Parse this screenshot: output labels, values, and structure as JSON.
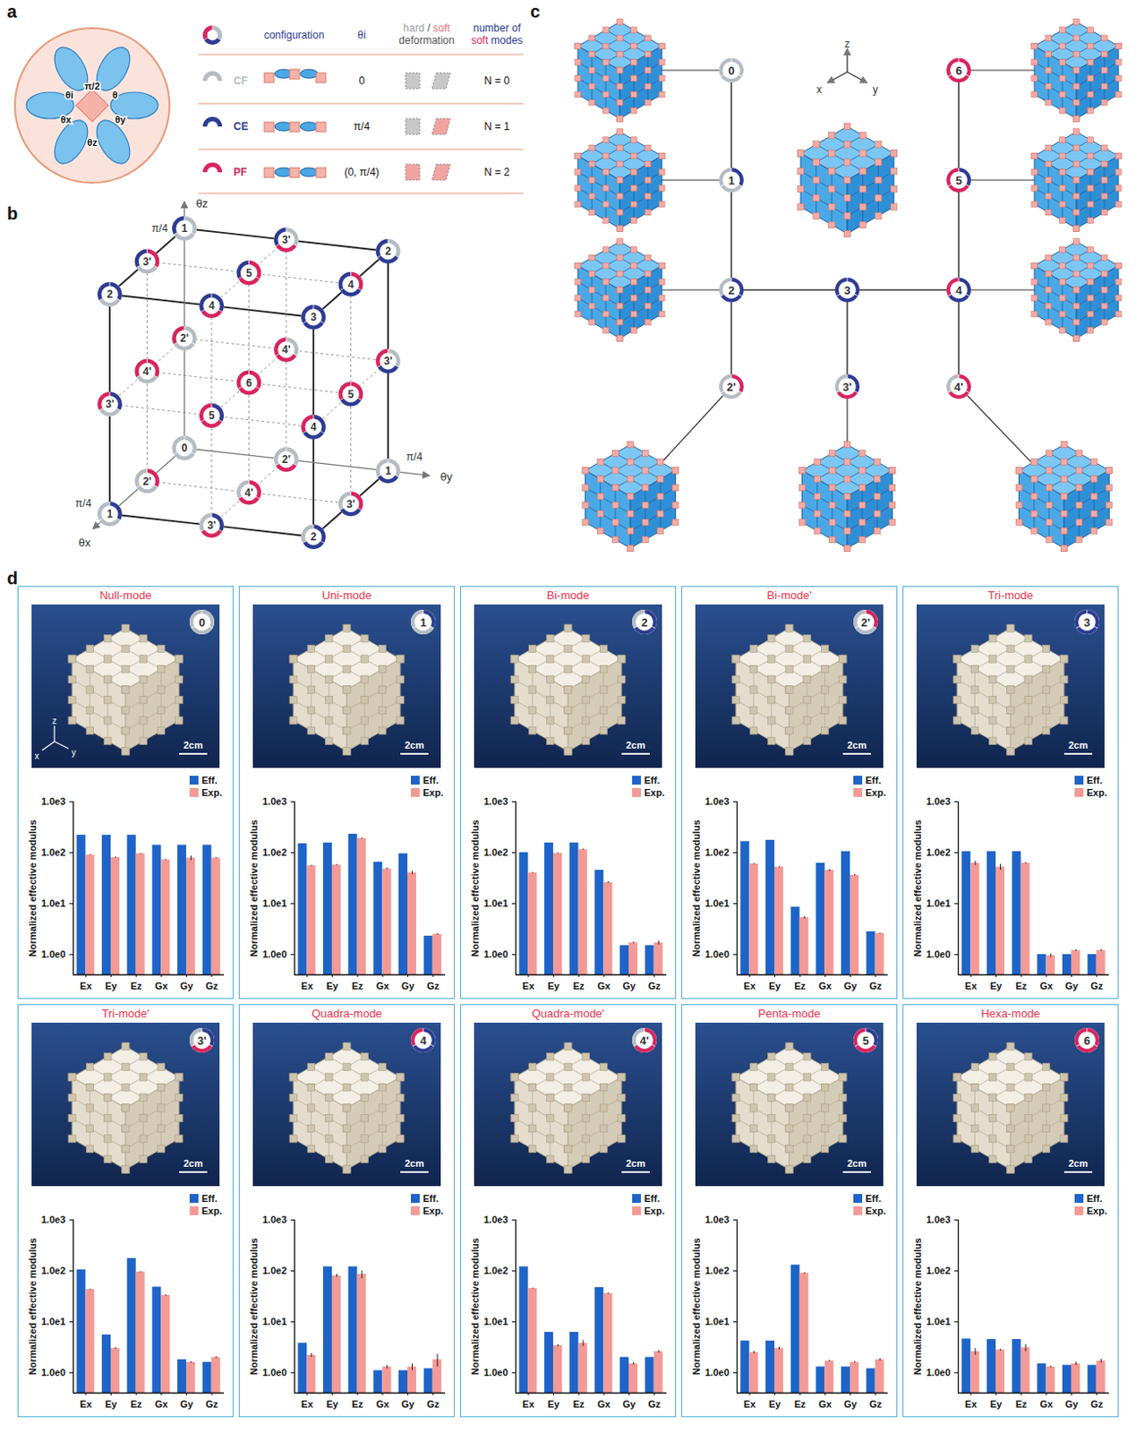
{
  "panel_a": {
    "letter": "a",
    "illustration_labels": [
      "π/2",
      "θx",
      "θy",
      "θz",
      "θi",
      "θ"
    ],
    "header": {
      "configuration": "configuration",
      "theta": "θi",
      "deformation": "hard / soft deformation",
      "modes": "number of soft modes"
    },
    "rows": [
      {
        "abbr": "CF",
        "theta": "0",
        "N": "N = 0",
        "color": "#b5bcc3",
        "coord": 0,
        "deformation": [
          "hard",
          "hard"
        ]
      },
      {
        "abbr": "CE",
        "theta": "π/4",
        "N": "N = 1",
        "color": "#2e3b93",
        "coord": 1,
        "deformation": [
          "hard",
          "soft"
        ]
      },
      {
        "abbr": "PF",
        "theta": "(0, π/4)",
        "N": "N = 2",
        "color": "#d9245d",
        "coord": 0.5,
        "deformation": [
          "soft",
          "soft"
        ]
      }
    ]
  },
  "panel_b": {
    "letter": "b",
    "axes": [
      "θx",
      "θy",
      "θz"
    ],
    "axis_end": "π/4",
    "nodes": [
      {
        "label": "0",
        "theta": [
          0,
          0,
          0
        ]
      },
      {
        "label": "2'",
        "theta": [
          0.5,
          0,
          0
        ]
      },
      {
        "label": "2'",
        "theta": [
          0,
          0.5,
          0
        ]
      },
      {
        "label": "2'",
        "theta": [
          0,
          0,
          0.5
        ]
      },
      {
        "label": "1",
        "theta": [
          1,
          0,
          0
        ]
      },
      {
        "label": "1",
        "theta": [
          0,
          1,
          0
        ]
      },
      {
        "label": "1",
        "theta": [
          0,
          0,
          1
        ]
      },
      {
        "label": "2",
        "theta": [
          1,
          1,
          0
        ]
      },
      {
        "label": "2",
        "theta": [
          1,
          0,
          1
        ]
      },
      {
        "label": "2",
        "theta": [
          0,
          1,
          1
        ]
      },
      {
        "label": "3",
        "theta": [
          1,
          1,
          1
        ]
      },
      {
        "label": "3'",
        "theta": [
          1,
          0.5,
          0
        ]
      },
      {
        "label": "3'",
        "theta": [
          0.5,
          1,
          0
        ]
      },
      {
        "label": "3'",
        "theta": [
          1,
          0,
          0.5
        ]
      },
      {
        "label": "3'",
        "theta": [
          0.5,
          0,
          1
        ]
      },
      {
        "label": "3'",
        "theta": [
          0,
          1,
          0.5
        ]
      },
      {
        "label": "3'",
        "theta": [
          0,
          0.5,
          1
        ]
      },
      {
        "label": "4'",
        "theta": [
          0.5,
          0.5,
          0
        ]
      },
      {
        "label": "4'",
        "theta": [
          0.5,
          0,
          0.5
        ]
      },
      {
        "label": "4'",
        "theta": [
          0,
          0.5,
          0.5
        ]
      },
      {
        "label": "4",
        "theta": [
          1,
          1,
          0.5
        ]
      },
      {
        "label": "4",
        "theta": [
          1,
          0.5,
          1
        ]
      },
      {
        "label": "4",
        "theta": [
          0.5,
          1,
          1
        ]
      },
      {
        "label": "5",
        "theta": [
          1,
          0.5,
          0.5
        ]
      },
      {
        "label": "5",
        "theta": [
          0.5,
          1,
          0.5
        ]
      },
      {
        "label": "5",
        "theta": [
          0.5,
          0.5,
          1
        ]
      },
      {
        "label": "6",
        "theta": [
          0.5,
          0.5,
          0.5
        ]
      }
    ]
  },
  "panel_c": {
    "letter": "c",
    "axes": [
      "x",
      "y",
      "z"
    ],
    "nodes": [
      "0",
      "1",
      "2",
      "3",
      "4",
      "5",
      "6",
      "2'",
      "3'",
      "4'"
    ],
    "edges": [
      [
        "0",
        "1"
      ],
      [
        "1",
        "2"
      ],
      [
        "2",
        "3"
      ],
      [
        "3",
        "4"
      ],
      [
        "4",
        "5"
      ],
      [
        "5",
        "6"
      ],
      [
        "2",
        "2'"
      ],
      [
        "3",
        "3'"
      ],
      [
        "4",
        "4'"
      ]
    ]
  },
  "panel_d_letter": "d",
  "chart_data": [
    {
      "type": "bar",
      "title": "Null-mode",
      "annotations": {
        "badge": "0",
        "scale_bar": "2cm",
        "axes": [
          "z",
          "x",
          "y"
        ]
      },
      "categories": [
        "Ex",
        "Ey",
        "Ez",
        "Gx",
        "Gy",
        "Gz"
      ],
      "ylabel": "Normalized effective modulus",
      "log": "y",
      "ylim": [
        0.4,
        1000
      ],
      "yticks": [
        {
          "value": 1,
          "label": "1.0e0"
        },
        {
          "value": 10,
          "label": "1.0e1"
        },
        {
          "value": 100,
          "label": "1.0e2"
        },
        {
          "value": 1000,
          "label": "1.0e3"
        }
      ],
      "legend": "top-right",
      "series": [
        {
          "name": "Eff.",
          "color": "#1e64c8",
          "values": [
            220,
            220,
            220,
            140,
            140,
            140
          ]
        },
        {
          "name": "Exp.",
          "color": "#f39a96",
          "values": [
            90,
            80,
            95,
            72,
            78,
            78
          ],
          "errors": [
            2,
            2,
            2,
            2,
            8,
            2
          ]
        }
      ]
    },
    {
      "type": "bar",
      "title": "Uni-mode",
      "annotations": {
        "badge": "1",
        "scale_bar": "2cm"
      },
      "categories": [
        "Ex",
        "Ey",
        "Ez",
        "Gx",
        "Gy",
        "Gz"
      ],
      "ylabel": "Normalized effective modulus",
      "log": "y",
      "ylim": [
        0.4,
        1000
      ],
      "yticks": [
        {
          "value": 1,
          "label": "1.0e0"
        },
        {
          "value": 10,
          "label": "1.0e1"
        },
        {
          "value": 100,
          "label": "1.0e2"
        },
        {
          "value": 1000,
          "label": "1.0e3"
        }
      ],
      "legend": "top-right",
      "series": [
        {
          "name": "Eff.",
          "color": "#1e64c8",
          "values": [
            150,
            155,
            230,
            65,
            95,
            2.3
          ]
        },
        {
          "name": "Exp.",
          "color": "#f39a96",
          "values": [
            55,
            57,
            190,
            48,
            40,
            2.5
          ],
          "errors": [
            1.5,
            1.5,
            5,
            2,
            3,
            0.08
          ]
        }
      ]
    },
    {
      "type": "bar",
      "title": "Bi-mode",
      "annotations": {
        "badge": "2",
        "scale_bar": "2cm"
      },
      "categories": [
        "Ex",
        "Ey",
        "Ez",
        "Gx",
        "Gy",
        "Gz"
      ],
      "ylabel": "Normalized effective modulus",
      "log": "y",
      "ylim": [
        0.4,
        1000
      ],
      "yticks": [
        {
          "value": 1,
          "label": "1.0e0"
        },
        {
          "value": 10,
          "label": "1.0e1"
        },
        {
          "value": 100,
          "label": "1.0e2"
        },
        {
          "value": 1000,
          "label": "1.0e3"
        }
      ],
      "legend": "top-right",
      "series": [
        {
          "name": "Eff.",
          "color": "#1e64c8",
          "values": [
            100,
            155,
            155,
            45,
            1.5,
            1.5
          ]
        },
        {
          "name": "Exp.",
          "color": "#f39a96",
          "values": [
            40,
            97,
            115,
            26,
            1.7,
            1.7
          ],
          "errors": [
            1,
            2,
            3,
            1,
            0.06,
            0.15
          ]
        }
      ]
    },
    {
      "type": "bar",
      "title": "Bi-mode'",
      "annotations": {
        "badge": "2'",
        "scale_bar": "2cm"
      },
      "categories": [
        "Ex",
        "Ey",
        "Ez",
        "Gx",
        "Gy",
        "Gz"
      ],
      "ylabel": "Normalized effective modulus",
      "log": "y",
      "ylim": [
        0.4,
        1000
      ],
      "yticks": [
        {
          "value": 1,
          "label": "1.0e0"
        },
        {
          "value": 10,
          "label": "1.0e1"
        },
        {
          "value": 100,
          "label": "1.0e2"
        },
        {
          "value": 1000,
          "label": "1.0e3"
        }
      ],
      "legend": "top-right",
      "series": [
        {
          "name": "Eff.",
          "color": "#1e64c8",
          "values": [
            165,
            175,
            8.5,
            62,
            105,
            2.8
          ]
        },
        {
          "name": "Exp.",
          "color": "#f39a96",
          "values": [
            60,
            52,
            5.3,
            45,
            36,
            2.6
          ],
          "errors": [
            1.5,
            1,
            0.3,
            2,
            1,
            0.05
          ]
        }
      ]
    },
    {
      "type": "bar",
      "title": "Tri-mode",
      "annotations": {
        "badge": "3",
        "scale_bar": "2cm"
      },
      "categories": [
        "Ex",
        "Ey",
        "Ez",
        "Gx",
        "Gy",
        "Gz"
      ],
      "ylabel": "Normalized effective modulus",
      "log": "y",
      "ylim": [
        0.4,
        1000
      ],
      "yticks": [
        {
          "value": 1,
          "label": "1.0e0"
        },
        {
          "value": 10,
          "label": "1.0e1"
        },
        {
          "value": 100,
          "label": "1.0e2"
        },
        {
          "value": 1000,
          "label": "1.0e3"
        }
      ],
      "legend": "top-right",
      "series": [
        {
          "name": "Eff.",
          "color": "#1e64c8",
          "values": [
            105,
            105,
            105,
            1.0,
            1.0,
            1.0
          ]
        },
        {
          "name": "Exp.",
          "color": "#f39a96",
          "values": [
            62,
            52,
            62,
            0.95,
            1.2,
            1.2
          ],
          "errors": [
            6,
            7,
            2,
            0.08,
            0.04,
            0.05
          ]
        }
      ]
    },
    {
      "type": "bar",
      "title": "Tri-mode'",
      "annotations": {
        "badge": "3'",
        "scale_bar": "2cm"
      },
      "categories": [
        "Ex",
        "Ey",
        "Ez",
        "Gx",
        "Gy",
        "Gz"
      ],
      "ylabel": "Normalized effective modulus",
      "log": "y",
      "ylim": [
        0.4,
        1000
      ],
      "yticks": [
        {
          "value": 1,
          "label": "1.0e0"
        },
        {
          "value": 10,
          "label": "1.0e1"
        },
        {
          "value": 100,
          "label": "1.0e2"
        },
        {
          "value": 1000,
          "label": "1.0e3"
        }
      ],
      "legend": "top-right",
      "series": [
        {
          "name": "Eff.",
          "color": "#1e64c8",
          "values": [
            105,
            5.5,
            175,
            48,
            1.8,
            1.6
          ]
        },
        {
          "name": "Exp.",
          "color": "#f39a96",
          "values": [
            43,
            3.0,
            95,
            33,
            1.6,
            2.0
          ],
          "errors": [
            1,
            0.1,
            2,
            1,
            0.05,
            0.08
          ]
        }
      ]
    },
    {
      "type": "bar",
      "title": "Quadra-mode",
      "annotations": {
        "badge": "4",
        "scale_bar": "2cm"
      },
      "categories": [
        "Ex",
        "Ey",
        "Ez",
        "Gx",
        "Gy",
        "Gz"
      ],
      "ylabel": "Normalized effective modulus",
      "log": "y",
      "ylim": [
        0.4,
        1000
      ],
      "yticks": [
        {
          "value": 1,
          "label": "1.0e0"
        },
        {
          "value": 10,
          "label": "1.0e1"
        },
        {
          "value": 100,
          "label": "1.0e2"
        },
        {
          "value": 1000,
          "label": "1.0e3"
        }
      ],
      "legend": "top-right",
      "series": [
        {
          "name": "Eff.",
          "color": "#1e64c8",
          "values": [
            3.8,
            120,
            120,
            1.1,
            1.1,
            1.2
          ]
        },
        {
          "name": "Exp.",
          "color": "#f39a96",
          "values": [
            2.2,
            80,
            85,
            1.3,
            1.3,
            1.8
          ],
          "errors": [
            0.2,
            5,
            15,
            0.1,
            0.2,
            0.5
          ]
        }
      ]
    },
    {
      "type": "bar",
      "title": "Quadra-mode'",
      "annotations": {
        "badge": "4'",
        "scale_bar": "2cm"
      },
      "categories": [
        "Ex",
        "Ey",
        "Ez",
        "Gx",
        "Gy",
        "Gz"
      ],
      "ylabel": "Normalized effective modulus",
      "log": "y",
      "ylim": [
        0.4,
        1000
      ],
      "yticks": [
        {
          "value": 1,
          "label": "1.0e0"
        },
        {
          "value": 10,
          "label": "1.0e1"
        },
        {
          "value": 100,
          "label": "1.0e2"
        },
        {
          "value": 1000,
          "label": "1.0e3"
        }
      ],
      "legend": "top-right",
      "series": [
        {
          "name": "Eff.",
          "color": "#1e64c8",
          "values": [
            120,
            6.2,
            6.2,
            47,
            2.0,
            2.0
          ]
        },
        {
          "name": "Exp.",
          "color": "#f39a96",
          "values": [
            45,
            3.4,
            3.8,
            36,
            1.5,
            2.6
          ],
          "errors": [
            1,
            0.15,
            0.5,
            1,
            0.08,
            0.15
          ]
        }
      ]
    },
    {
      "type": "bar",
      "title": "Penta-mode",
      "annotations": {
        "badge": "5",
        "scale_bar": "2cm"
      },
      "categories": [
        "Ex",
        "Ey",
        "Ez",
        "Gx",
        "Gy",
        "Gz"
      ],
      "ylabel": "Normalized effective modulus",
      "log": "y",
      "ylim": [
        0.4,
        1000
      ],
      "yticks": [
        {
          "value": 1,
          "label": "1.0e0"
        },
        {
          "value": 10,
          "label": "1.0e1"
        },
        {
          "value": 100,
          "label": "1.0e2"
        },
        {
          "value": 1000,
          "label": "1.0e3"
        }
      ],
      "legend": "top-right",
      "series": [
        {
          "name": "Eff.",
          "color": "#1e64c8",
          "values": [
            4.2,
            4.2,
            130,
            1.3,
            1.3,
            1.2
          ]
        },
        {
          "name": "Exp.",
          "color": "#f39a96",
          "values": [
            2.5,
            3.0,
            90,
            1.7,
            1.6,
            1.8
          ],
          "errors": [
            0.15,
            0.2,
            3,
            0.05,
            0.05,
            0.1
          ]
        }
      ]
    },
    {
      "type": "bar",
      "title": "Hexa-mode",
      "annotations": {
        "badge": "6",
        "scale_bar": "2cm"
      },
      "categories": [
        "Ex",
        "Ey",
        "Ez",
        "Gx",
        "Gy",
        "Gz"
      ],
      "ylabel": "Normalized effective modulus",
      "log": "y",
      "ylim": [
        0.4,
        1000
      ],
      "yticks": [
        {
          "value": 1,
          "label": "1.0e0"
        },
        {
          "value": 10,
          "label": "1.0e1"
        },
        {
          "value": 100,
          "label": "1.0e2"
        },
        {
          "value": 1000,
          "label": "1.0e3"
        }
      ],
      "legend": "top-right",
      "series": [
        {
          "name": "Eff.",
          "color": "#1e64c8",
          "values": [
            4.6,
            4.5,
            4.5,
            1.5,
            1.4,
            1.4
          ]
        },
        {
          "name": "Exp.",
          "color": "#f39a96",
          "values": [
            2.6,
            2.8,
            3.1,
            1.3,
            1.5,
            1.7
          ],
          "errors": [
            0.4,
            0.1,
            0.5,
            0.05,
            0.1,
            0.15
          ]
        }
      ]
    }
  ]
}
